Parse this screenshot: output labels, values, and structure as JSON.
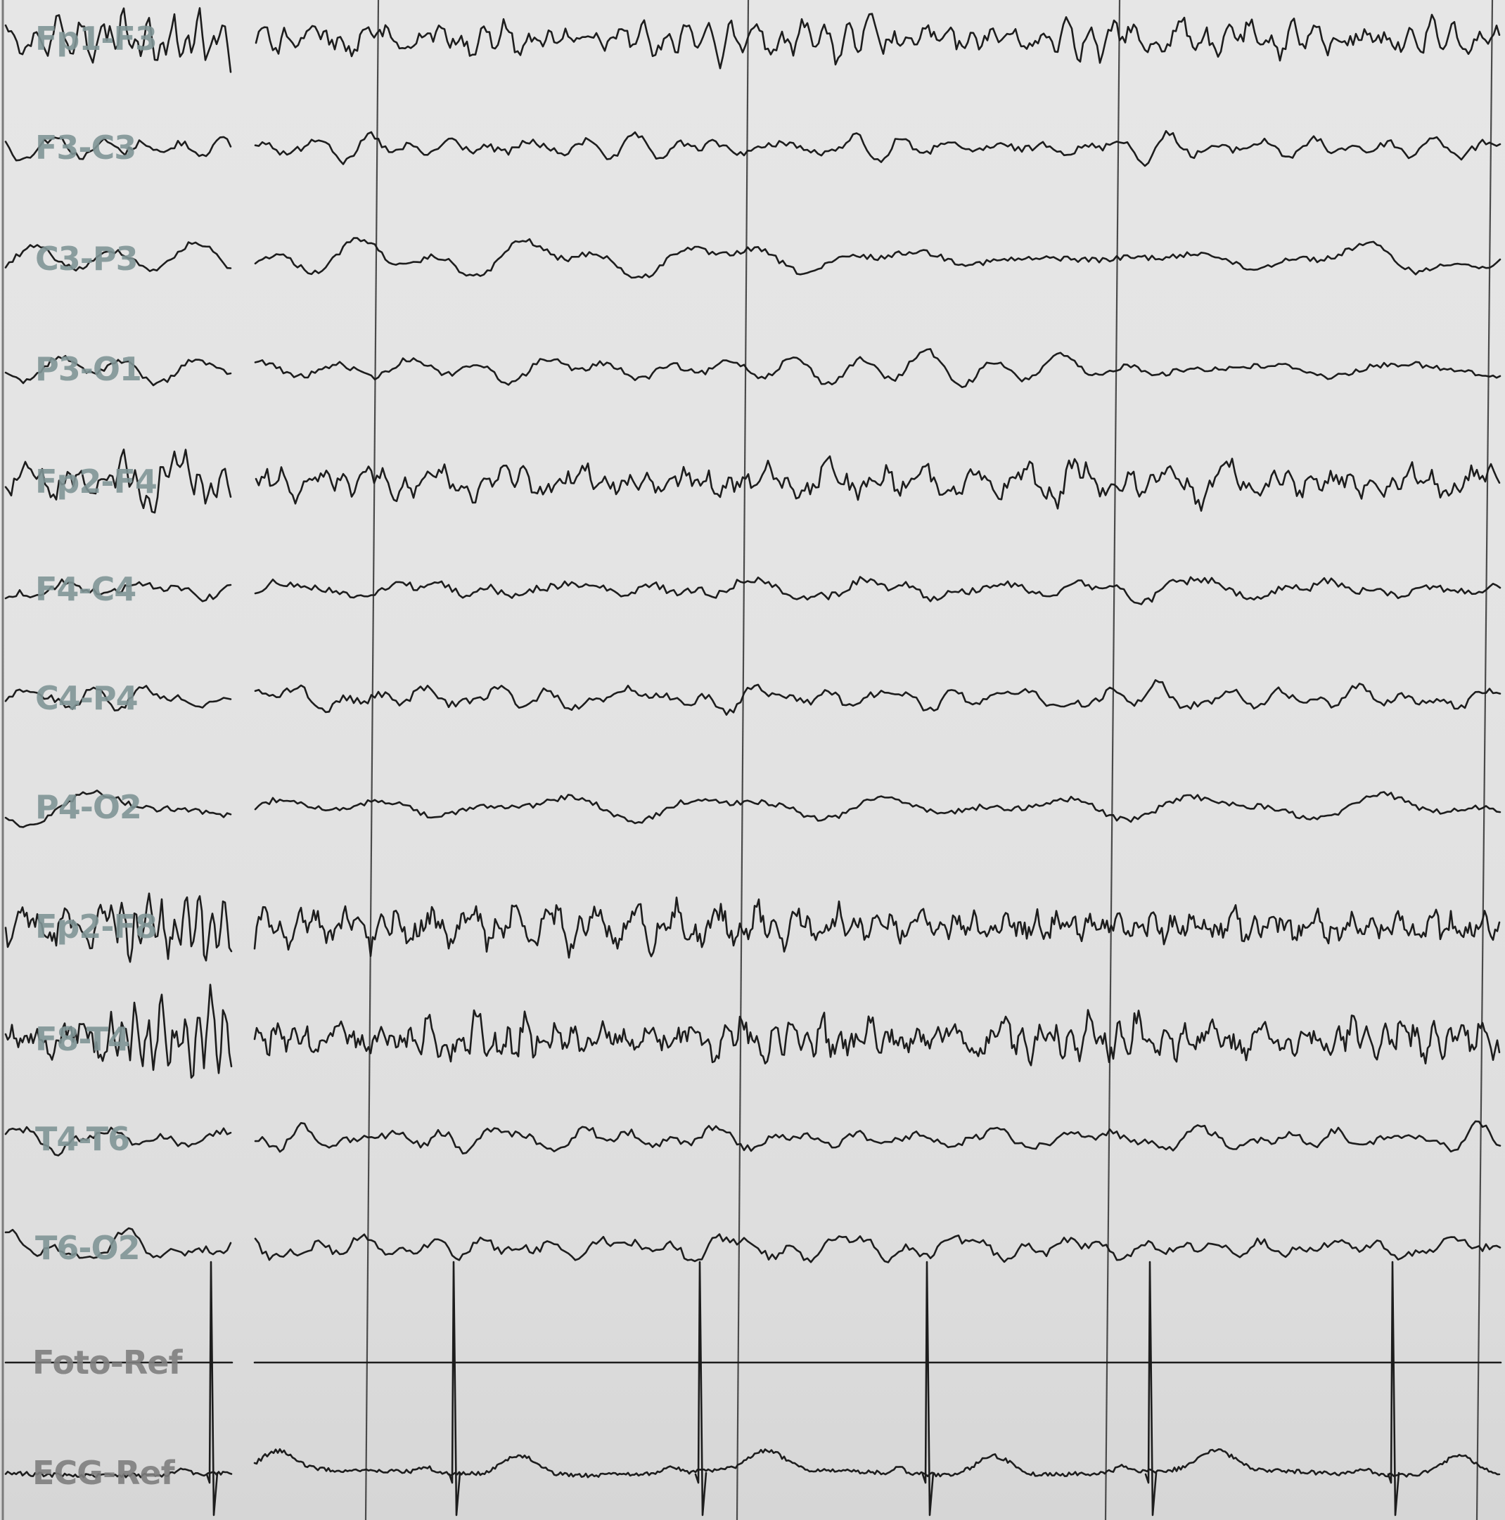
{
  "montage": {
    "channels": [
      {
        "label": "Fp1-F3",
        "kind": "eeg-fast"
      },
      {
        "label": "F3-C3",
        "kind": "eeg"
      },
      {
        "label": "C3-P3",
        "kind": "eeg-slow"
      },
      {
        "label": "P3-O1",
        "kind": "eeg-slow"
      },
      {
        "label": "Fp2-F4",
        "kind": "eeg-fast"
      },
      {
        "label": "F4-C4",
        "kind": "eeg"
      },
      {
        "label": "C4-P4",
        "kind": "eeg"
      },
      {
        "label": "P4-O2",
        "kind": "eeg-slow"
      },
      {
        "label": "Fp2-F8",
        "kind": "eeg-artifact"
      },
      {
        "label": "F8-T4",
        "kind": "eeg-artifact"
      },
      {
        "label": "T4-T6",
        "kind": "eeg"
      },
      {
        "label": "T6-O2",
        "kind": "eeg"
      },
      {
        "label": "Foto-Ref",
        "kind": "photic"
      },
      {
        "label": "ECG-Ref",
        "kind": "ecg"
      }
    ]
  },
  "colors": {
    "background": "#e3e3e3",
    "trace": "#1d1d1d",
    "eeg_label": "#7f9596",
    "aux_label": "#7e7e7e",
    "second_marker": "#4a4a4a"
  },
  "ecg_beats_visible": 6
}
